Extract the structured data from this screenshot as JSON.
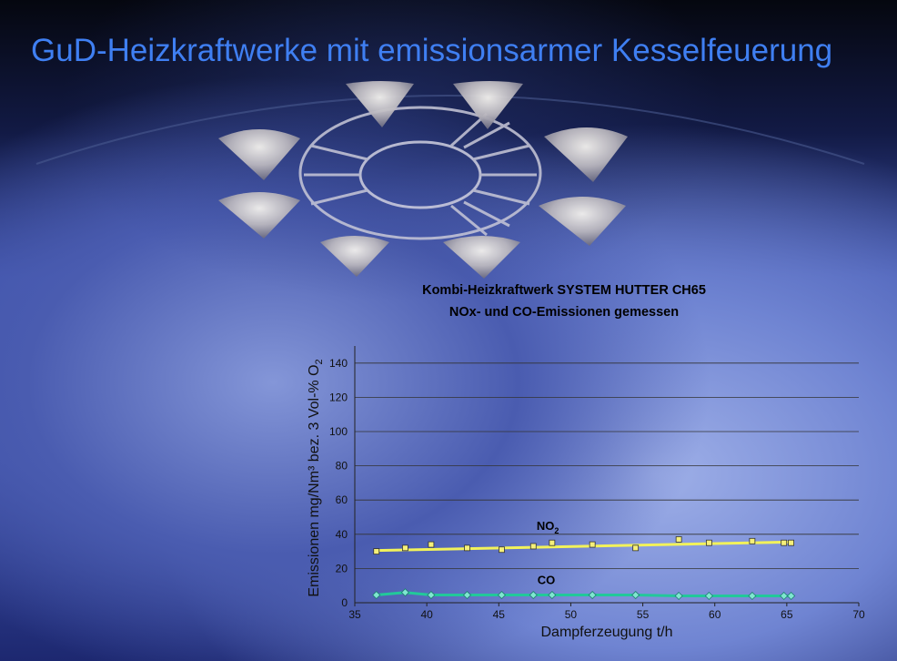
{
  "slide": {
    "title": "GuD-Heizkraftwerke mit emissionsarmer Kesselfeuerung"
  },
  "colors": {
    "title": "#3f7ff2",
    "no2_line": "#f2f25a",
    "co_line": "#22c89a",
    "grid": "#333333"
  },
  "chart_data": {
    "type": "line",
    "title": "Kombi-Heizkraftwerk SYSTEM HUTTER CH65",
    "subtitle": "NOx- und CO-Emissionen gemessen",
    "xlabel": "Dampferzeugung t/h",
    "ylabel": "Emissionen mg/Nm³ bez. 3 Vol-% O",
    "ylabel_sub": "2",
    "xlim": [
      35,
      70
    ],
    "ylim": [
      0,
      150
    ],
    "xticks": [
      35,
      40,
      45,
      50,
      55,
      60,
      65,
      70
    ],
    "yticks": [
      0,
      20,
      40,
      60,
      80,
      100,
      120,
      140
    ],
    "grid": true,
    "series": [
      {
        "name": "NO",
        "name_sub": "2",
        "marker": "square",
        "trendline": [
          [
            36.5,
            30.5
          ],
          [
            65.5,
            35.5
          ]
        ],
        "points": [
          [
            36.5,
            30
          ],
          [
            38.5,
            32
          ],
          [
            40.3,
            34
          ],
          [
            42.8,
            32
          ],
          [
            45.2,
            31
          ],
          [
            47.4,
            33
          ],
          [
            48.7,
            35
          ],
          [
            51.5,
            34
          ],
          [
            54.5,
            32
          ],
          [
            57.5,
            37
          ],
          [
            59.6,
            35
          ],
          [
            62.6,
            36
          ],
          [
            64.8,
            35
          ],
          [
            65.3,
            35
          ]
        ]
      },
      {
        "name": "CO",
        "marker": "diamond",
        "points": [
          [
            36.5,
            4.5
          ],
          [
            38.5,
            6
          ],
          [
            40.3,
            4.5
          ],
          [
            42.8,
            4.5
          ],
          [
            45.2,
            4.5
          ],
          [
            47.4,
            4.5
          ],
          [
            48.7,
            4.5
          ],
          [
            51.5,
            4.5
          ],
          [
            54.5,
            4.5
          ],
          [
            57.5,
            4
          ],
          [
            59.6,
            4
          ],
          [
            62.6,
            4
          ],
          [
            64.8,
            4
          ],
          [
            65.3,
            4
          ]
        ]
      }
    ]
  }
}
